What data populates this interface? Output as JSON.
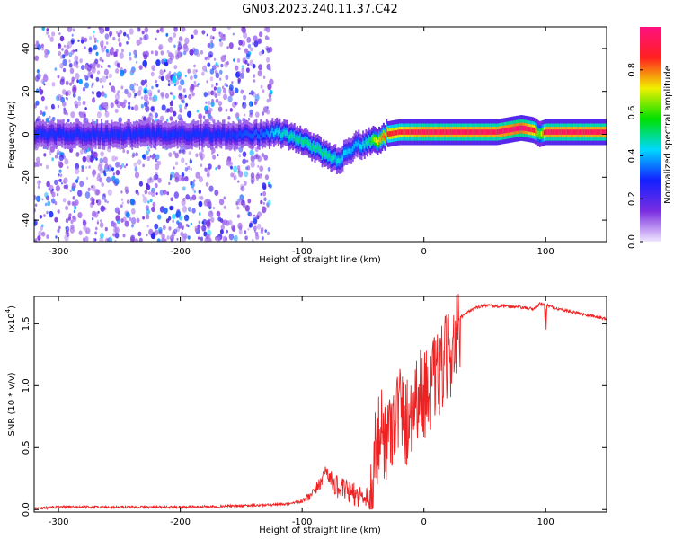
{
  "title": "GN03.2023.240.11.37.C42",
  "chart_data": [
    {
      "type": "heatmap",
      "xlabel": "Height of straight line (km)",
      "ylabel": "Frequency (Hz)",
      "xlim": [
        -320,
        150
      ],
      "ylim": [
        -50,
        50
      ],
      "xticks": [
        -300,
        -200,
        -100,
        0,
        100
      ],
      "yticks": [
        -40,
        -20,
        0,
        20,
        40
      ],
      "xtick_labels": [
        "-300",
        "-200",
        "-100",
        "0",
        "100"
      ],
      "ytick_labels": [
        "-40",
        "-20",
        "0",
        "20",
        "40"
      ],
      "colorbar": {
        "label": "Normalized spectral amplitude",
        "range": [
          0,
          1
        ],
        "ticks": [
          0.0,
          0.2,
          0.4,
          0.6,
          0.8
        ],
        "tick_labels": [
          "0.0",
          "0.2",
          "0.4",
          "0.6",
          "0.8"
        ],
        "colors": [
          "#f0e6ff",
          "#7a2de0",
          "#1420ff",
          "#00d8ff",
          "#00e000",
          "#f0f000",
          "#ff2020",
          "#ff1080"
        ]
      },
      "noise_region_x": [
        -320,
        -125
      ],
      "ridge": {
        "x": [
          -320,
          -280,
          -240,
          -200,
          -160,
          -130,
          -120,
          -100,
          -90,
          -80,
          -70,
          -60,
          -55,
          -50,
          -45,
          -40,
          -30,
          -20,
          0,
          20,
          40,
          60,
          80,
          90,
          95,
          100,
          120,
          150
        ],
        "y": [
          0,
          0,
          0,
          0,
          0,
          0,
          1,
          -3,
          -6,
          -10,
          -12,
          -7,
          -4,
          -5,
          -3,
          -3,
          0,
          1,
          1,
          1,
          1,
          1,
          3,
          2,
          0,
          1,
          1,
          1
        ],
        "amplitude": [
          0.3,
          0.3,
          0.3,
          0.3,
          0.3,
          0.35,
          0.45,
          0.5,
          0.5,
          0.5,
          0.45,
          0.4,
          0.4,
          0.45,
          0.5,
          0.7,
          0.85,
          0.9,
          0.95,
          0.95,
          0.95,
          0.95,
          1.0,
          0.9,
          0.6,
          0.95,
          0.95,
          0.95
        ]
      }
    },
    {
      "type": "line",
      "xlabel": "Height of straight line (km)",
      "ylabel": "SNR (10 * v/v)",
      "y_multiplier": "(x10",
      "y_multiplier_exp": "4",
      "y_multiplier_close": ")",
      "xlim": [
        -320,
        150
      ],
      "ylim": [
        -0.02,
        1.72
      ],
      "xticks": [
        -300,
        -200,
        -100,
        0,
        100
      ],
      "yticks": [
        0.0,
        0.5,
        1.0,
        1.5
      ],
      "xtick_labels": [
        "-300",
        "-200",
        "-100",
        "0",
        "100"
      ],
      "ytick_labels": [
        "0.0",
        "0.5",
        "1.0",
        "1.5"
      ],
      "series": [
        {
          "name": "SNR",
          "color": "#ee2222",
          "x": [
            -320,
            -300,
            -250,
            -200,
            -150,
            -120,
            -110,
            -100,
            -95,
            -90,
            -85,
            -80,
            -75,
            -70,
            -65,
            -60,
            -55,
            -50,
            -45,
            -42,
            -40,
            -35,
            -30,
            -25,
            -20,
            -15,
            -10,
            -5,
            0,
            5,
            10,
            15,
            20,
            25,
            30,
            40,
            50,
            60,
            70,
            80,
            90,
            95,
            100,
            110,
            120,
            130,
            140,
            150
          ],
          "y": [
            0.01,
            0.02,
            0.02,
            0.02,
            0.03,
            0.04,
            0.05,
            0.06,
            0.08,
            0.12,
            0.2,
            0.3,
            0.18,
            0.14,
            0.12,
            0.1,
            0.08,
            0.07,
            0.09,
            0.3,
            0.55,
            0.75,
            0.7,
            0.85,
            0.95,
            0.8,
            0.95,
            1.05,
            1.05,
            1.1,
            1.15,
            1.25,
            1.35,
            1.45,
            1.55,
            1.62,
            1.65,
            1.64,
            1.64,
            1.63,
            1.62,
            1.66,
            1.65,
            1.62,
            1.6,
            1.58,
            1.56,
            1.54
          ]
        }
      ]
    }
  ]
}
